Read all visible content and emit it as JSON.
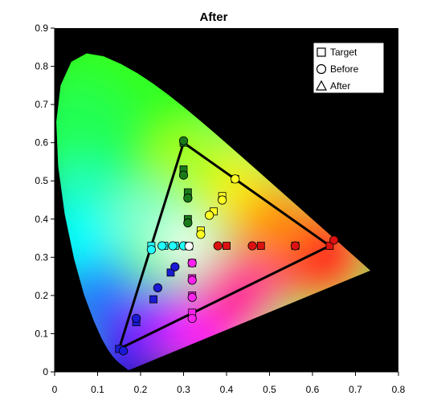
{
  "chart_data": {
    "type": "scatter",
    "title": "After",
    "xlabel": "",
    "ylabel": "",
    "xlim": [
      0,
      0.8
    ],
    "ylim": [
      0,
      0.9
    ],
    "x_ticks": [
      "0",
      "0.1",
      "0.2",
      "0.3",
      "0.4",
      "0.5",
      "0.6",
      "0.7",
      "0.8"
    ],
    "y_ticks": [
      "0",
      "0.1",
      "0.2",
      "0.3",
      "0.4",
      "0.5",
      "0.6",
      "0.7",
      "0.8",
      "0.9"
    ],
    "plot_background": "#000000",
    "legend_position": "top-right",
    "legend": [
      {
        "label": "Target",
        "marker": "square"
      },
      {
        "label": "Before",
        "marker": "circle"
      },
      {
        "label": "After",
        "marker": "triangle"
      }
    ],
    "gamut_triangle": [
      [
        0.64,
        0.33
      ],
      [
        0.3,
        0.6
      ],
      [
        0.15,
        0.06
      ]
    ],
    "locus": [
      [
        0.1741,
        0.005
      ],
      [
        0.1738,
        0.0049
      ],
      [
        0.1736,
        0.0049
      ],
      [
        0.1733,
        0.0048
      ],
      [
        0.173,
        0.0048
      ],
      [
        0.1726,
        0.0048
      ],
      [
        0.1721,
        0.0048
      ],
      [
        0.1714,
        0.0051
      ],
      [
        0.1703,
        0.0058
      ],
      [
        0.1689,
        0.0069
      ],
      [
        0.1669,
        0.0086
      ],
      [
        0.1644,
        0.0109
      ],
      [
        0.1611,
        0.0138
      ],
      [
        0.1566,
        0.0177
      ],
      [
        0.151,
        0.0227
      ],
      [
        0.144,
        0.0297
      ],
      [
        0.1355,
        0.0399
      ],
      [
        0.1241,
        0.0578
      ],
      [
        0.1096,
        0.0868
      ],
      [
        0.0913,
        0.1327
      ],
      [
        0.0687,
        0.2007
      ],
      [
        0.0454,
        0.295
      ],
      [
        0.0235,
        0.4127
      ],
      [
        0.0082,
        0.5384
      ],
      [
        0.0039,
        0.6548
      ],
      [
        0.0139,
        0.7502
      ],
      [
        0.0389,
        0.812
      ],
      [
        0.0743,
        0.8338
      ],
      [
        0.1142,
        0.8262
      ],
      [
        0.1547,
        0.8059
      ],
      [
        0.1929,
        0.7816
      ],
      [
        0.2296,
        0.7543
      ],
      [
        0.2658,
        0.7243
      ],
      [
        0.3016,
        0.6923
      ],
      [
        0.3373,
        0.6589
      ],
      [
        0.3731,
        0.6245
      ],
      [
        0.4087,
        0.5896
      ],
      [
        0.4441,
        0.5547
      ],
      [
        0.4788,
        0.5202
      ],
      [
        0.5125,
        0.4866
      ],
      [
        0.5448,
        0.4544
      ],
      [
        0.5752,
        0.4242
      ],
      [
        0.6029,
        0.3965
      ],
      [
        0.627,
        0.3725
      ],
      [
        0.6482,
        0.3514
      ],
      [
        0.6658,
        0.334
      ],
      [
        0.6801,
        0.3197
      ],
      [
        0.6915,
        0.3083
      ],
      [
        0.7006,
        0.2993
      ],
      [
        0.7079,
        0.292
      ],
      [
        0.714,
        0.2859
      ],
      [
        0.719,
        0.2809
      ],
      [
        0.723,
        0.277
      ],
      [
        0.726,
        0.274
      ],
      [
        0.7283,
        0.2717
      ],
      [
        0.73,
        0.27
      ],
      [
        0.7347,
        0.2653
      ]
    ],
    "series": [
      {
        "color": "#dd1111",
        "target": [
          [
            0.64,
            0.33
          ],
          [
            0.56,
            0.33
          ],
          [
            0.48,
            0.33
          ],
          [
            0.4,
            0.33
          ]
        ],
        "before": [
          [
            0.65,
            0.345
          ],
          [
            0.56,
            0.33
          ],
          [
            0.46,
            0.33
          ],
          [
            0.38,
            0.33
          ]
        ]
      },
      {
        "color": "#1a7a1a",
        "target": [
          [
            0.3,
            0.6
          ],
          [
            0.3,
            0.53
          ],
          [
            0.31,
            0.47
          ],
          [
            0.31,
            0.4
          ]
        ],
        "before": [
          [
            0.3,
            0.605
          ],
          [
            0.3,
            0.515
          ],
          [
            0.31,
            0.455
          ],
          [
            0.31,
            0.39
          ]
        ]
      },
      {
        "color": "#1a1ad4",
        "target": [
          [
            0.15,
            0.06
          ],
          [
            0.19,
            0.13
          ],
          [
            0.23,
            0.19
          ],
          [
            0.27,
            0.26
          ]
        ],
        "before": [
          [
            0.16,
            0.055
          ],
          [
            0.19,
            0.14
          ],
          [
            0.24,
            0.22
          ],
          [
            0.28,
            0.275
          ]
        ]
      },
      {
        "color": "#ffff22",
        "target": [
          [
            0.42,
            0.505
          ],
          [
            0.39,
            0.46
          ],
          [
            0.37,
            0.42
          ],
          [
            0.34,
            0.37
          ]
        ],
        "before": [
          [
            0.42,
            0.505
          ],
          [
            0.39,
            0.45
          ],
          [
            0.36,
            0.41
          ],
          [
            0.34,
            0.36
          ]
        ]
      },
      {
        "color": "#22ffff",
        "target": [
          [
            0.225,
            0.33
          ],
          [
            0.255,
            0.33
          ],
          [
            0.28,
            0.33
          ],
          [
            0.305,
            0.33
          ]
        ],
        "before": [
          [
            0.225,
            0.32
          ],
          [
            0.25,
            0.33
          ],
          [
            0.275,
            0.33
          ],
          [
            0.3,
            0.33
          ]
        ]
      },
      {
        "color": "#ff22ee",
        "target": [
          [
            0.32,
            0.155
          ],
          [
            0.32,
            0.2
          ],
          [
            0.32,
            0.245
          ],
          [
            0.32,
            0.285
          ]
        ],
        "before": [
          [
            0.32,
            0.14
          ],
          [
            0.32,
            0.195
          ],
          [
            0.32,
            0.24
          ],
          [
            0.32,
            0.285
          ]
        ]
      },
      {
        "color": "#ffffff",
        "target": [
          [
            0.3127,
            0.329
          ]
        ],
        "before": [
          [
            0.3127,
            0.329
          ]
        ]
      }
    ]
  }
}
